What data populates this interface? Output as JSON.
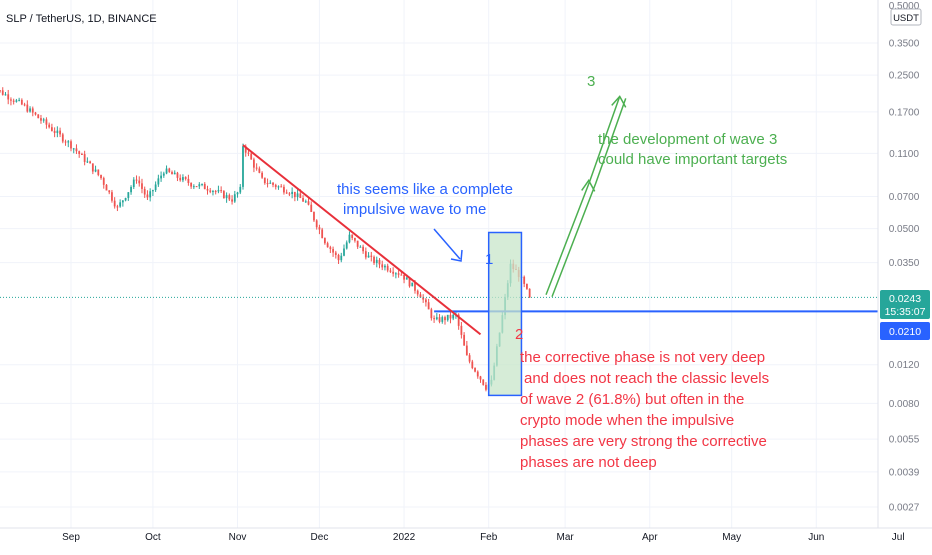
{
  "header": {
    "symbol_label": "SLP / TetherUS, 1D, BINANCE"
  },
  "currency_badge": "USDT",
  "y_axis": {
    "partial_top_label": "0.5000"
  },
  "price_tags": {
    "last_price": "0.0243",
    "countdown": "15:35:07",
    "support_level": "0.0210"
  },
  "annotations": {
    "wave_1_label": "1",
    "wave_2_label": "2",
    "wave_3_label": "3",
    "impulsive_note": [
      "this seems like a complete",
      "impulsive wave to me"
    ],
    "corrective_note": [
      "the corrective phase is not very deep",
      "and does not reach the classic levels",
      "of wave 2 (61.8%) but often in the",
      "crypto mode when the impulsive",
      "phases are very strong the corrective",
      "phases are not deep"
    ],
    "wave3_note": [
      "the development of wave 3",
      "could have important targets"
    ]
  },
  "colors": {
    "up_candle": "#26a69a",
    "down_candle": "#ef5350",
    "trendline": "#e8303a",
    "support_line": "#2962ff",
    "annotation_blue": "#2962ff",
    "annotation_red": "#f23645",
    "annotation_green": "#4caf50",
    "last_price_line": "#26a69a",
    "wave_box_fill": "#c8e6c9",
    "wave_box_border": "#2962ff"
  },
  "chart_data": {
    "type": "candlestick",
    "title": "SLP / TetherUS, 1D, BINANCE",
    "y_scale": "log",
    "ylim": [
      0.0025,
      0.5
    ],
    "y_ticks": [
      0.35,
      0.25,
      0.17,
      0.11,
      0.07,
      0.05,
      0.035,
      0.012,
      0.008,
      0.0055,
      0.0039,
      0.0027
    ],
    "y_tick_labels": [
      "0.3500",
      "0.2500",
      "0.1700",
      "0.1100",
      "0.0700",
      "0.0500",
      "0.0350",
      "0.0120",
      "0.0080",
      "0.0055",
      "0.0039",
      "0.0027"
    ],
    "x_ticks": [
      {
        "label": "Sep",
        "date": "2021-09-01"
      },
      {
        "label": "Oct",
        "date": "2021-10-01"
      },
      {
        "label": "Nov",
        "date": "2021-11-01"
      },
      {
        "label": "Dec",
        "date": "2021-12-01"
      },
      {
        "label": "2022",
        "date": "2022-01-01"
      },
      {
        "label": "Feb",
        "date": "2022-02-01"
      },
      {
        "label": "Mar",
        "date": "2022-03-01"
      },
      {
        "label": "Apr",
        "date": "2022-04-01"
      },
      {
        "label": "May",
        "date": "2022-05-01"
      },
      {
        "label": "Jun",
        "date": "2022-06-01"
      },
      {
        "label": "Jul",
        "date": "2022-07-01"
      }
    ],
    "price_path": [
      {
        "date": "2021-08-01",
        "close": 0.23
      },
      {
        "date": "2021-08-15",
        "close": 0.18
      },
      {
        "date": "2021-09-01",
        "close": 0.12
      },
      {
        "date": "2021-09-07",
        "close": 0.1
      },
      {
        "date": "2021-09-12",
        "close": 0.085
      },
      {
        "date": "2021-09-18",
        "close": 0.062
      },
      {
        "date": "2021-09-25",
        "close": 0.085
      },
      {
        "date": "2021-09-29",
        "close": 0.068
      },
      {
        "date": "2021-10-05",
        "close": 0.092
      },
      {
        "date": "2021-10-15",
        "close": 0.08
      },
      {
        "date": "2021-10-22",
        "close": 0.076
      },
      {
        "date": "2021-10-30",
        "close": 0.068
      },
      {
        "date": "2021-11-02",
        "close": 0.075
      },
      {
        "date": "2021-11-03",
        "close": 0.12
      },
      {
        "date": "2021-11-10",
        "close": 0.083
      },
      {
        "date": "2021-11-20",
        "close": 0.074
      },
      {
        "date": "2021-11-26",
        "close": 0.066
      },
      {
        "date": "2021-12-03",
        "close": 0.044
      },
      {
        "date": "2021-12-08",
        "close": 0.036
      },
      {
        "date": "2021-12-12",
        "close": 0.046
      },
      {
        "date": "2021-12-20",
        "close": 0.036
      },
      {
        "date": "2021-12-31",
        "close": 0.031
      },
      {
        "date": "2022-01-07",
        "close": 0.025
      },
      {
        "date": "2022-01-12",
        "close": 0.019
      },
      {
        "date": "2022-01-20",
        "close": 0.02
      },
      {
        "date": "2022-01-24",
        "close": 0.013
      },
      {
        "date": "2022-01-31",
        "close": 0.0095
      },
      {
        "date": "2022-02-02",
        "close": 0.01
      },
      {
        "date": "2022-02-06",
        "close": 0.02
      },
      {
        "date": "2022-02-09",
        "close": 0.034
      },
      {
        "date": "2022-02-12",
        "close": 0.031
      },
      {
        "date": "2022-02-16",
        "close": 0.0243
      }
    ],
    "last_price": 0.0243,
    "horizontal_levels": [
      {
        "price": 0.021,
        "label": "0.0210"
      }
    ],
    "trendline": {
      "from": {
        "date": "2021-11-03",
        "price": 0.12
      },
      "to": {
        "date": "2022-01-29",
        "price": 0.0165
      }
    },
    "wave_box": {
      "date_from": "2022-02-01",
      "date_to": "2022-02-13",
      "price_low": 0.0087,
      "price_high": 0.048
    },
    "projection_arrow": [
      {
        "date": "2022-02-22",
        "price": 0.025
      },
      {
        "date": "2022-03-10",
        "price": 0.082
      },
      {
        "date": "2022-03-21",
        "price": 0.2
      }
    ]
  }
}
